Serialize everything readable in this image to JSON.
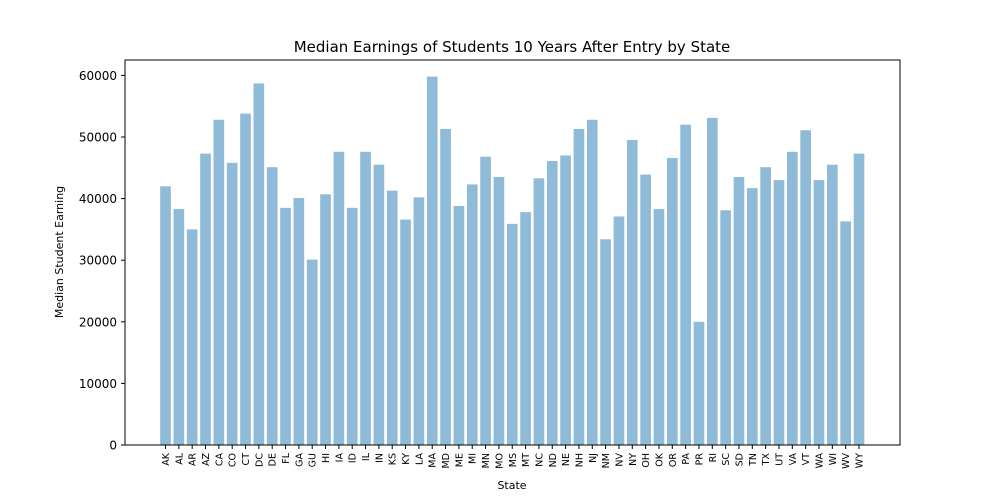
{
  "chart_data": {
    "type": "bar",
    "title": "Median Earnings of Students 10 Years After Entry by State",
    "xlabel": "State",
    "ylabel": "Median Student Earning",
    "ylim": [
      0,
      62500
    ],
    "yticks": [
      0,
      10000,
      20000,
      30000,
      40000,
      50000,
      60000
    ],
    "grid": false,
    "colors": {
      "bar": "#1f77b4"
    },
    "categories": [
      "AK",
      "AL",
      "AR",
      "AZ",
      "CA",
      "CO",
      "CT",
      "DC",
      "DE",
      "FL",
      "GA",
      "GU",
      "HI",
      "IA",
      "ID",
      "IL",
      "IN",
      "KS",
      "KY",
      "LA",
      "MA",
      "MD",
      "ME",
      "MI",
      "MN",
      "MO",
      "MS",
      "MT",
      "NC",
      "ND",
      "NE",
      "NH",
      "NJ",
      "NM",
      "NV",
      "NY",
      "OH",
      "OK",
      "OR",
      "PA",
      "PR",
      "RI",
      "SC",
      "SD",
      "TN",
      "TX",
      "UT",
      "VA",
      "VT",
      "WA",
      "WI",
      "WV",
      "WY"
    ],
    "values": [
      42000,
      38300,
      35000,
      47300,
      52800,
      45800,
      53800,
      58700,
      45100,
      38500,
      40100,
      30100,
      40700,
      47600,
      38500,
      47600,
      45500,
      41300,
      36600,
      40200,
      59800,
      51300,
      38800,
      42300,
      46800,
      43500,
      35900,
      37800,
      43300,
      46100,
      47000,
      51300,
      52800,
      33400,
      37100,
      49500,
      43900,
      38300,
      46600,
      52000,
      20000,
      53100,
      38100,
      43500,
      41700,
      45100,
      43000,
      47600,
      51100,
      43000,
      45500,
      36300,
      47300
    ]
  }
}
